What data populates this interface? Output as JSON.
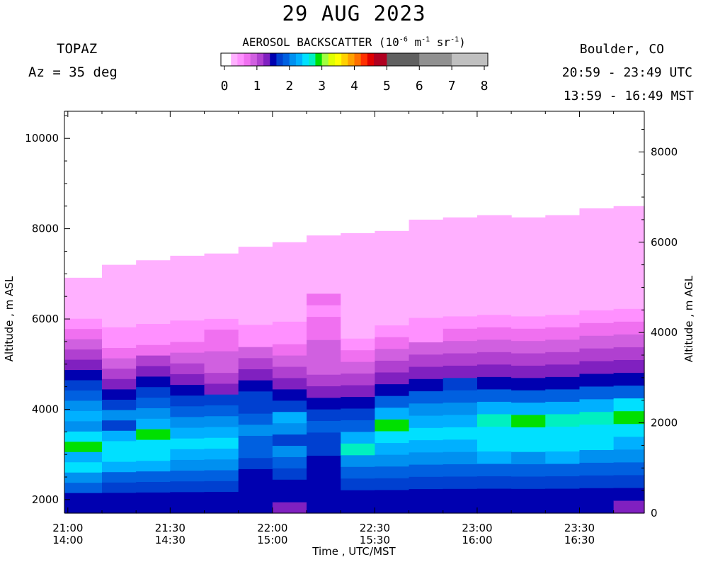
{
  "header": {
    "title": "29 AUG 2023",
    "instrument": "TOPAZ",
    "azimuth": "Az =  35 deg",
    "location": "Boulder, CO",
    "utc_range": "20:59 - 23:49 UTC",
    "mst_range": "13:59 - 16:49 MST"
  },
  "colorbar": {
    "title_prefix": "AEROSOL BACKSCATTER (10",
    "title_exp1": "-6",
    "title_mid": " m",
    "title_exp2": "-1",
    "title_mid2": " sr",
    "title_exp3": "-1",
    "title_suffix": ")",
    "tick_labels": [
      "0",
      "1",
      "2",
      "3",
      "4",
      "5",
      "6",
      "7",
      "8"
    ],
    "colors": [
      "#ffffff",
      "#ffb0ff",
      "#ff90ff",
      "#f070f0",
      "#d060e0",
      "#b040d0",
      "#8020c0",
      "#0000b0",
      "#0040d0",
      "#0060e0",
      "#0090f0",
      "#00b0ff",
      "#00e0ff",
      "#00f0c0",
      "#00e000",
      "#a0ff40",
      "#e0ff00",
      "#ffff00",
      "#ffd000",
      "#ffa000",
      "#ff7000",
      "#ff3000",
      "#e00000",
      "#b00020",
      "#606060",
      "#909090",
      "#c0c0c0"
    ],
    "color_values": [
      0,
      0.2,
      0.4,
      0.6,
      0.8,
      1.0,
      1.2,
      1.4,
      1.6,
      1.8,
      2.0,
      2.2,
      2.4,
      2.6,
      2.8,
      3.0,
      3.2,
      3.4,
      3.6,
      3.8,
      4.0,
      4.2,
      4.4,
      4.6,
      5.0,
      6.0,
      7.0
    ]
  },
  "chart_data": {
    "type": "heatmap",
    "title": "29 AUG 2023",
    "xlabel": "Time , UTC/MST",
    "ylabel_left": "Altitude , m ASL",
    "ylabel_right": "Altitude , m AGL",
    "x_ticks": [
      {
        "utc": "21:00",
        "mst": "14:00",
        "time_utc": "21:00"
      },
      {
        "utc": "21:30",
        "mst": "14:30",
        "time_utc": "21:30"
      },
      {
        "utc": "22:00",
        "mst": "15:00",
        "time_utc": "22:00"
      },
      {
        "utc": "22:30",
        "mst": "15:30",
        "time_utc": "22:30"
      },
      {
        "utc": "23:00",
        "mst": "16:00",
        "time_utc": "23:00"
      },
      {
        "utc": "23:30",
        "mst": "16:30",
        "time_utc": "23:30"
      }
    ],
    "xlim_utc": [
      "20:59",
      "23:49"
    ],
    "ylim_asl_m": [
      1700,
      10600
    ],
    "y_ticks_left": [
      "2000",
      "4000",
      "6000",
      "8000",
      "10000"
    ],
    "y_ticks_right": [
      "0",
      "2000",
      "4000",
      "6000",
      "8000"
    ],
    "profiles": [
      {
        "time_utc": "21:00",
        "top_m": 7150,
        "values": [
          1.5,
          1.5,
          1.8,
          2.0,
          2.4,
          2.2,
          2.9,
          2.4,
          2.0,
          2.3,
          2.0,
          1.8,
          1.7,
          1.5,
          1.3,
          1.0,
          0.8,
          0.6,
          0.4,
          0.2,
          0.2,
          0.2,
          0.2,
          0
        ]
      },
      {
        "time_utc": "21:10",
        "top_m": 7200,
        "values": [
          1.5,
          1.4,
          1.6,
          1.8,
          2.2,
          2.4,
          2.5,
          2.3,
          1.6,
          2.0,
          1.7,
          1.5,
          1.3,
          1.1,
          0.8,
          0.6,
          0.5,
          0.4,
          0.2,
          0.2,
          0.2,
          0.2,
          0.2,
          0.2
        ]
      },
      {
        "time_utc": "21:20",
        "top_m": 7300,
        "values": [
          1.5,
          1.5,
          1.6,
          1.8,
          2.2,
          2.4,
          2.4,
          2.9,
          2.2,
          2.0,
          1.8,
          1.6,
          1.5,
          1.2,
          1.0,
          0.7,
          0.5,
          0.4,
          0.2,
          0.2,
          0.2,
          0.2,
          0.2,
          0.2
        ]
      },
      {
        "time_utc": "21:30",
        "top_m": 7400,
        "values": [
          1.5,
          1.5,
          1.6,
          1.8,
          2.0,
          2.2,
          2.4,
          2.2,
          2.1,
          1.8,
          1.6,
          1.5,
          1.2,
          1.0,
          0.8,
          0.6,
          0.4,
          0.4,
          0.2,
          0.2,
          0.2,
          0.2,
          0.2,
          0.2
        ]
      },
      {
        "time_utc": "21:40",
        "top_m": 7450,
        "values": [
          1.4,
          1.5,
          1.6,
          1.8,
          2.0,
          2.2,
          2.4,
          2.3,
          2.0,
          1.8,
          1.6,
          1.3,
          1.1,
          0.9,
          0.8,
          0.6,
          0.6,
          0.4,
          0.2,
          0.2,
          0.2,
          0.2,
          0.2,
          0.2
        ]
      },
      {
        "time_utc": "21:50",
        "top_m": 7600,
        "values": [
          1.4,
          1.4,
          1.5,
          1.5,
          1.6,
          1.8,
          1.8,
          2.0,
          1.8,
          1.6,
          1.6,
          1.5,
          1.2,
          1.0,
          0.8,
          0.5,
          0.4,
          0.2,
          0.2,
          0.2,
          0.2,
          0.2,
          0.2,
          0.2
        ]
      },
      {
        "time_utc": "22:00",
        "top_m": 7700,
        "values": [
          1.3,
          1.5,
          1.5,
          1.6,
          1.8,
          2.0,
          1.7,
          2.0,
          2.2,
          1.7,
          1.5,
          1.3,
          1.0,
          0.8,
          0.6,
          0.4,
          0.4,
          0.2,
          0.2,
          0.2,
          0.2,
          0.2,
          0.2,
          0.2
        ]
      },
      {
        "time_utc": "22:10",
        "top_m": 7850,
        "values": [
          1.4,
          1.4,
          1.4,
          1.5,
          1.5,
          1.6,
          1.7,
          1.8,
          1.6,
          1.5,
          1.3,
          1.0,
          0.8,
          0.8,
          0.8,
          0.6,
          0.6,
          0.4,
          0.6,
          0.2,
          0.2,
          0.2,
          0.2,
          0.2
        ]
      },
      {
        "time_utc": "22:20",
        "top_m": 7900,
        "values": [
          1.5,
          1.5,
          1.6,
          1.8,
          2.0,
          2.6,
          2.2,
          1.8,
          1.6,
          1.5,
          1.2,
          1.0,
          0.8,
          0.6,
          0.4,
          0.2,
          0.2,
          0.2,
          0.2,
          0.2,
          0.2,
          0.2,
          0.2,
          0.2
        ]
      },
      {
        "time_utc": "22:30",
        "top_m": 7950,
        "values": [
          1.5,
          1.5,
          1.6,
          1.8,
          2.0,
          2.2,
          2.4,
          2.9,
          2.2,
          1.8,
          1.5,
          1.2,
          1.0,
          0.8,
          0.6,
          0.4,
          0.2,
          0.2,
          0.2,
          0.2,
          0.2,
          0.2,
          0.2,
          0.2
        ]
      },
      {
        "time_utc": "22:40",
        "top_m": 8200,
        "values": [
          1.5,
          1.5,
          1.6,
          1.8,
          2.0,
          2.2,
          2.4,
          2.2,
          2.0,
          1.8,
          1.5,
          1.2,
          1.0,
          0.8,
          0.5,
          0.4,
          0.2,
          0.2,
          0.2,
          0.2,
          0.2,
          0.2,
          0.2,
          0.2
        ]
      },
      {
        "time_utc": "22:50",
        "top_m": 8250,
        "values": [
          1.5,
          1.5,
          1.6,
          1.8,
          2.0,
          2.2,
          2.4,
          2.3,
          2.1,
          1.8,
          1.6,
          1.3,
          1.0,
          0.8,
          0.6,
          0.4,
          0.2,
          0.2,
          0.2,
          0.2,
          0.2,
          0.2,
          0.2,
          0.2
        ]
      },
      {
        "time_utc": "23:00",
        "top_m": 8300,
        "values": [
          1.5,
          1.5,
          1.6,
          1.8,
          2.2,
          2.4,
          2.4,
          2.7,
          2.2,
          1.8,
          1.5,
          1.2,
          1.0,
          0.8,
          0.6,
          0.4,
          0.2,
          0.2,
          0.2,
          0.2,
          0.2,
          0.2,
          0.2,
          0.2
        ]
      },
      {
        "time_utc": "23:10",
        "top_m": 8250,
        "values": [
          1.5,
          1.5,
          1.6,
          1.8,
          2.0,
          2.4,
          2.4,
          2.8,
          2.2,
          1.8,
          1.5,
          1.2,
          1.0,
          0.8,
          0.6,
          0.4,
          0.2,
          0.2,
          0.2,
          0.2,
          0.2,
          0.2,
          0.2,
          0.2
        ]
      },
      {
        "time_utc": "23:20",
        "top_m": 8300,
        "values": [
          1.5,
          1.5,
          1.6,
          1.8,
          2.2,
          2.4,
          2.4,
          2.7,
          2.2,
          1.8,
          1.5,
          1.2,
          1.0,
          0.8,
          0.6,
          0.4,
          0.2,
          0.2,
          0.2,
          0.2,
          0.2,
          0.2,
          0.2,
          0.2
        ]
      },
      {
        "time_utc": "23:30",
        "top_m": 8450,
        "values": [
          1.5,
          1.5,
          1.6,
          1.8,
          2.0,
          2.4,
          2.4,
          2.6,
          2.2,
          1.8,
          1.5,
          1.2,
          1.0,
          0.8,
          0.6,
          0.4,
          0.2,
          0.2,
          0.2,
          0.2,
          0.2,
          0.2,
          0.2,
          0.2
        ]
      },
      {
        "time_utc": "23:40",
        "top_m": 8500,
        "values": [
          1.3,
          1.5,
          1.6,
          1.8,
          2.0,
          2.2,
          2.4,
          2.8,
          2.4,
          1.8,
          1.5,
          1.2,
          1.0,
          0.8,
          0.6,
          0.4,
          0.2,
          0.2,
          0.2,
          0.2,
          0.2,
          0.2,
          0.2,
          0.2
        ]
      }
    ]
  }
}
